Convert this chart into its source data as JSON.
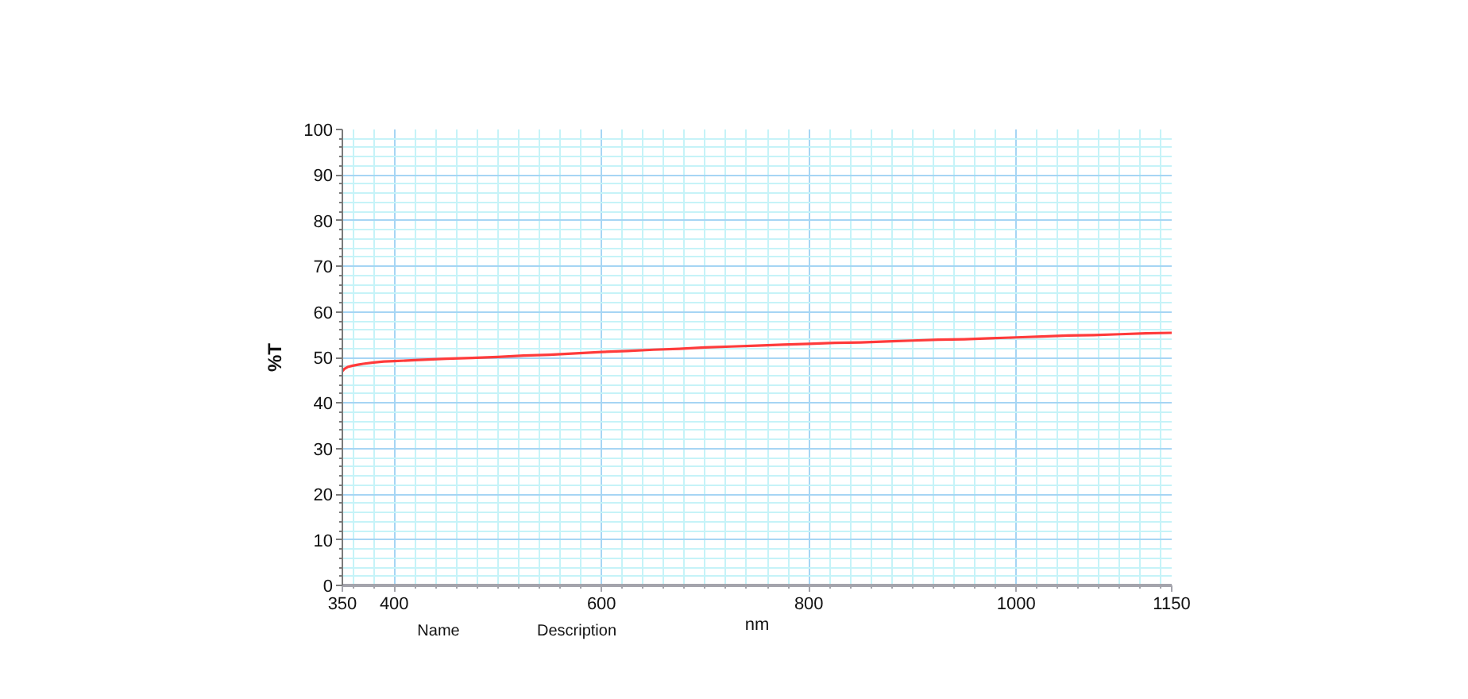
{
  "chart_data": {
    "type": "line",
    "xlabel": "nm",
    "ylabel": "%T",
    "x": [
      350,
      352,
      355,
      360,
      365,
      370,
      380,
      390,
      400,
      420,
      450,
      475,
      500,
      525,
      550,
      575,
      600,
      625,
      650,
      675,
      700,
      725,
      750,
      775,
      800,
      825,
      850,
      875,
      900,
      925,
      950,
      975,
      1000,
      1025,
      1050,
      1075,
      1100,
      1125,
      1150
    ],
    "series": [
      {
        "color": "#ff3b3b",
        "values": [
          47.0,
          47.5,
          47.9,
          48.2,
          48.4,
          48.6,
          48.9,
          49.1,
          49.2,
          49.4,
          49.7,
          49.9,
          50.1,
          50.4,
          50.6,
          50.9,
          51.2,
          51.4,
          51.7,
          51.9,
          52.2,
          52.4,
          52.6,
          52.8,
          53.0,
          53.2,
          53.3,
          53.5,
          53.7,
          53.9,
          54.0,
          54.2,
          54.4,
          54.6,
          54.8,
          54.9,
          55.1,
          55.3,
          55.4
        ]
      }
    ],
    "xlim": [
      350,
      1150
    ],
    "ylim": [
      0,
      100
    ],
    "xticks": [
      350,
      {
        "value": 360,
        "label": null
      },
      {
        "value": 380,
        "label": null
      },
      400,
      {
        "value": 420,
        "label": null
      },
      {
        "value": 440,
        "label": null
      },
      {
        "value": 460,
        "label": null
      },
      {
        "value": 480,
        "label": null
      },
      {
        "value": 500,
        "label": null
      },
      {
        "value": 520,
        "label": null
      },
      {
        "value": 540,
        "label": null
      },
      {
        "value": 560,
        "label": null
      },
      {
        "value": 580,
        "label": null
      },
      600,
      {
        "value": 620,
        "label": null
      },
      {
        "value": 640,
        "label": null
      },
      {
        "value": 660,
        "label": null
      },
      {
        "value": 680,
        "label": null
      },
      {
        "value": 700,
        "label": null
      },
      {
        "value": 720,
        "label": null
      },
      {
        "value": 740,
        "label": null
      },
      {
        "value": 760,
        "label": null
      },
      {
        "value": 780,
        "label": null
      },
      800,
      {
        "value": 820,
        "label": null
      },
      {
        "value": 840,
        "label": null
      },
      {
        "value": 860,
        "label": null
      },
      {
        "value": 880,
        "label": null
      },
      {
        "value": 900,
        "label": null
      },
      {
        "value": 920,
        "label": null
      },
      {
        "value": 940,
        "label": null
      },
      {
        "value": 960,
        "label": null
      },
      {
        "value": 980,
        "label": null
      },
      1000,
      {
        "value": 1020,
        "label": null
      },
      {
        "value": 1040,
        "label": null
      },
      {
        "value": 1060,
        "label": null
      },
      {
        "value": 1080,
        "label": null
      },
      {
        "value": 1100,
        "label": null
      },
      {
        "value": 1120,
        "label": null
      },
      {
        "value": 1140,
        "label": null
      },
      1150
    ],
    "yticks": [
      0,
      {
        "value": 2,
        "label": null
      },
      {
        "value": 4,
        "label": null
      },
      {
        "value": 6,
        "label": null
      },
      {
        "value": 8,
        "label": null
      },
      10,
      {
        "value": 12,
        "label": null
      },
      {
        "value": 14,
        "label": null
      },
      {
        "value": 16,
        "label": null
      },
      {
        "value": 18,
        "label": null
      },
      20,
      {
        "value": 22,
        "label": null
      },
      {
        "value": 24,
        "label": null
      },
      {
        "value": 26,
        "label": null
      },
      {
        "value": 28,
        "label": null
      },
      30,
      {
        "value": 32,
        "label": null
      },
      {
        "value": 34,
        "label": null
      },
      {
        "value": 36,
        "label": null
      },
      {
        "value": 38,
        "label": null
      },
      40,
      {
        "value": 42,
        "label": null
      },
      {
        "value": 44,
        "label": null
      },
      {
        "value": 46,
        "label": null
      },
      {
        "value": 48,
        "label": null
      },
      50,
      {
        "value": 52,
        "label": null
      },
      {
        "value": 54,
        "label": null
      },
      {
        "value": 56,
        "label": null
      },
      {
        "value": 58,
        "label": null
      },
      60,
      {
        "value": 62,
        "label": null
      },
      {
        "value": 64,
        "label": null
      },
      {
        "value": 66,
        "label": null
      },
      {
        "value": 68,
        "label": null
      },
      70,
      {
        "value": 72,
        "label": null
      },
      {
        "value": 74,
        "label": null
      },
      {
        "value": 76,
        "label": null
      },
      {
        "value": 78,
        "label": null
      },
      80,
      {
        "value": 82,
        "label": null
      },
      {
        "value": 84,
        "label": null
      },
      {
        "value": 86,
        "label": null
      },
      {
        "value": 88,
        "label": null
      },
      90,
      {
        "value": 92,
        "label": null
      },
      {
        "value": 94,
        "label": null
      },
      {
        "value": 96,
        "label": null
      },
      {
        "value": 98,
        "label": null
      },
      100
    ],
    "grid": true,
    "line_style": "solid",
    "annotations": [
      "Name",
      "Description"
    ]
  }
}
